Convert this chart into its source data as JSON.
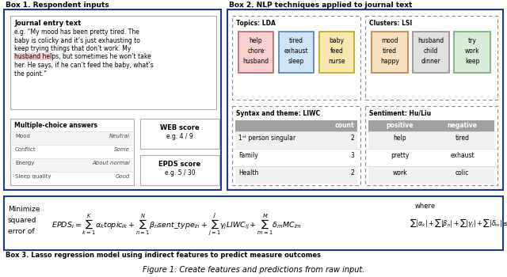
{
  "title": "Figure 1: Create features and predictions from raw input.",
  "box1_title": "Box 1. Respondent inputs",
  "box2_title": "Box 2. NLP techniques applied to journal text",
  "box3_title": "Box 3. Lasso regression model using indirect features to predict measure outcomes",
  "journal_title": "Journal entry text",
  "journal_text_lines": [
    "e.g. “My mood has been pretty tired. The",
    "baby is colicky and it’s just exhausting to",
    "keep trying things that don’t work. My",
    "husband helps, but sometimes he won’t take",
    "her. He says, if he can’t feed the baby, what’s",
    "the point.”"
  ],
  "mc_title": "Multiple-choice answers",
  "mc_rows": [
    [
      "Mood",
      "Neutral"
    ],
    [
      "Conflict",
      "Some"
    ],
    [
      "Energy",
      "About normal"
    ],
    [
      "Sleep quality",
      "Good"
    ]
  ],
  "web_title": "WEB score",
  "web_val": "e.g. 4 / 9",
  "epds_title": "EPDS score",
  "epds_val": "e.g. 5 / 30",
  "lda_title": "Topics: LDA",
  "lda_topics": [
    {
      "text": "help\nchore\nhusband",
      "facecolor": "#f9d0d0",
      "edgecolor": "#c06060"
    },
    {
      "text": "tired\nexhaust\nsleep",
      "facecolor": "#d0e4f8",
      "edgecolor": "#5080c0"
    },
    {
      "text": "baby\nfeed\nnurse",
      "facecolor": "#f8e8b0",
      "edgecolor": "#c0a020"
    }
  ],
  "lsi_title": "Clusters: LSI",
  "lsi_clusters": [
    {
      "text": "mood\ntired\nhappy",
      "facecolor": "#f8e0c0",
      "edgecolor": "#c08040"
    },
    {
      "text": "husband\nchild\ndinner",
      "facecolor": "#e0e0e0",
      "edgecolor": "#909090"
    },
    {
      "text": "try\nwork\nkeep",
      "facecolor": "#d8ecd8",
      "edgecolor": "#70a870"
    }
  ],
  "liwc_title": "Syntax and theme: LIWC",
  "liwc_header": "count",
  "liwc_rows": [
    [
      "1ˢᵗ person singular",
      "2"
    ],
    [
      "Family",
      "3"
    ],
    [
      "Health",
      "2"
    ]
  ],
  "sentiment_title": "Sentiment: Hu/Liu",
  "sentiment_header": [
    "positive",
    "negative"
  ],
  "sentiment_rows": [
    [
      "help",
      "tired"
    ],
    [
      "pretty",
      "exhaust"
    ],
    [
      "work",
      "colic"
    ]
  ],
  "box3_left_lines": [
    "Minimize",
    "squared",
    "error of"
  ],
  "bg_color": "#ffffff",
  "box_edge_color": "#1a3a8a",
  "header_bg": "#a0a0a0"
}
